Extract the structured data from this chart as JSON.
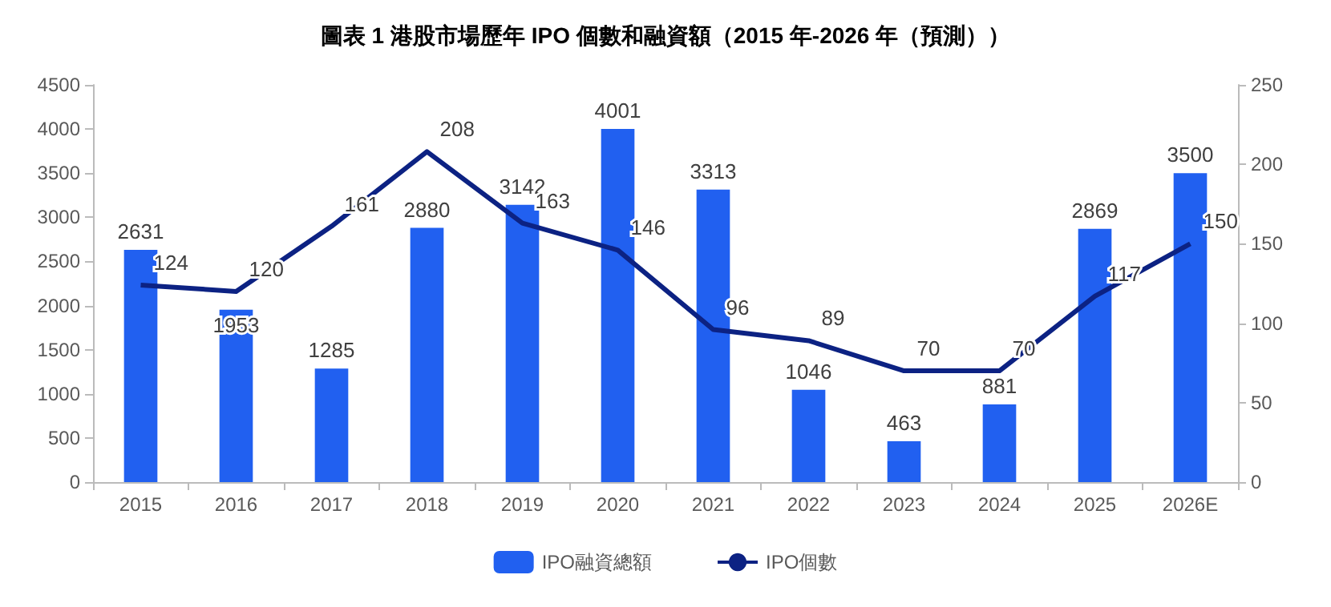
{
  "chart_data": {
    "type": "bar",
    "title": "圖表 1 港股市場歷年 IPO 個數和融資額（2015 年-2026 年（預測））",
    "categories": [
      "2015",
      "2016",
      "2017",
      "2018",
      "2019",
      "2020",
      "2021",
      "2022",
      "2023",
      "2024",
      "2025",
      "2026E"
    ],
    "series": [
      {
        "name": "IPO融資總額",
        "color": "#2160f0",
        "values": [
          2631,
          1953,
          1285,
          2880,
          3142,
          4001,
          3313,
          1046,
          463,
          881,
          2869,
          3500
        ]
      },
      {
        "name": "IPO個數",
        "type": "line",
        "axis": "y2",
        "color": "#0c2283",
        "values": [
          124,
          120,
          161,
          208,
          163,
          146,
          96,
          89,
          70,
          70,
          117,
          150
        ]
      }
    ],
    "ylim": [
      0,
      4500
    ],
    "yticks": [
      0,
      500,
      1000,
      1500,
      2000,
      2500,
      3000,
      3500,
      4000,
      4500
    ],
    "y2lim": [
      0,
      250
    ],
    "y2ticks": [
      0,
      50,
      100,
      150,
      200,
      250
    ],
    "data_labels": true,
    "legend": "bottom",
    "grid": false,
    "marker": "none",
    "line_style": "solid"
  }
}
